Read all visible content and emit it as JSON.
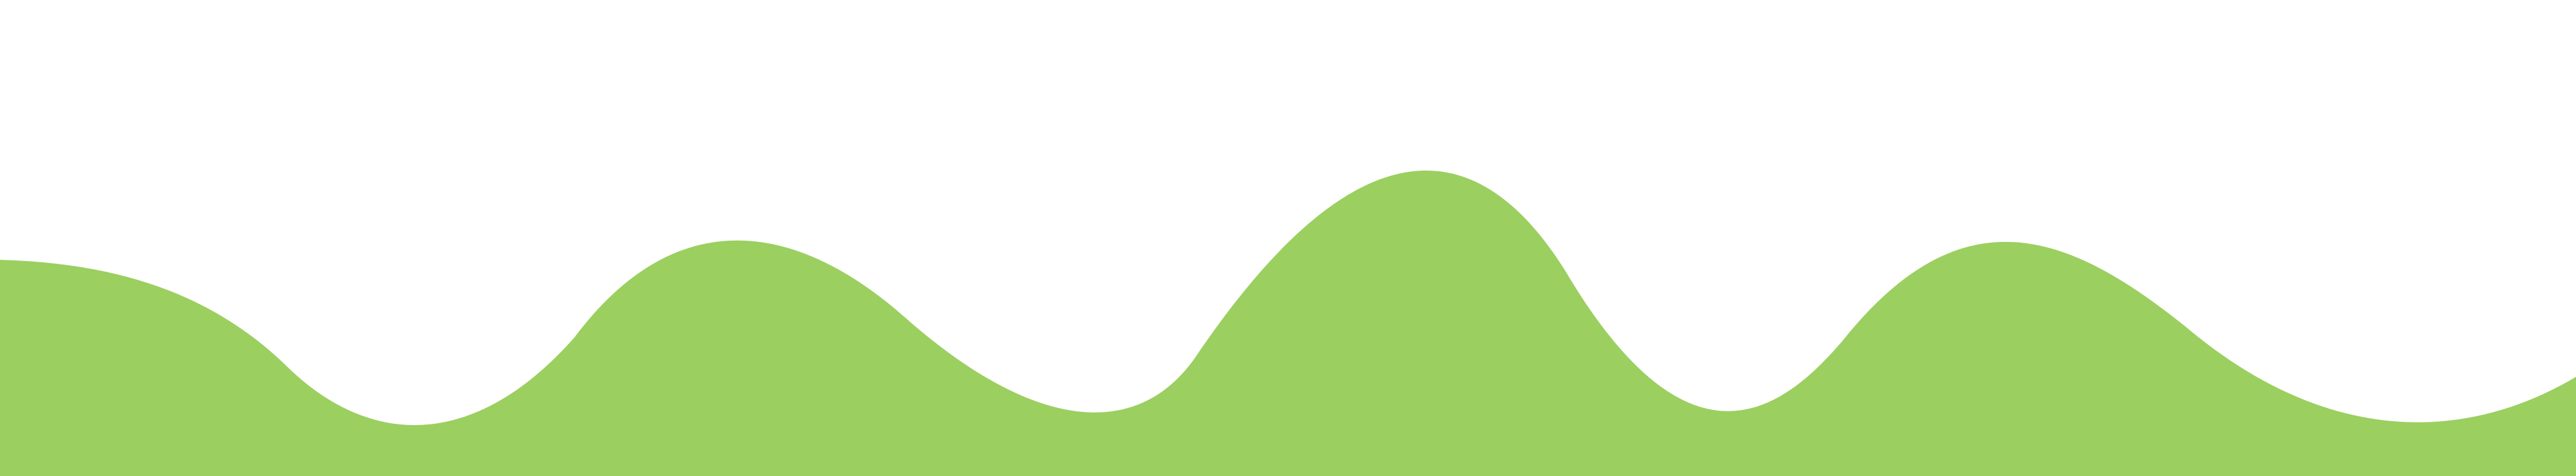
{
  "background_color": "#ffffff",
  "wave": {
    "fill_color": "#9bcf60",
    "icon": "hills-wave-shape"
  }
}
